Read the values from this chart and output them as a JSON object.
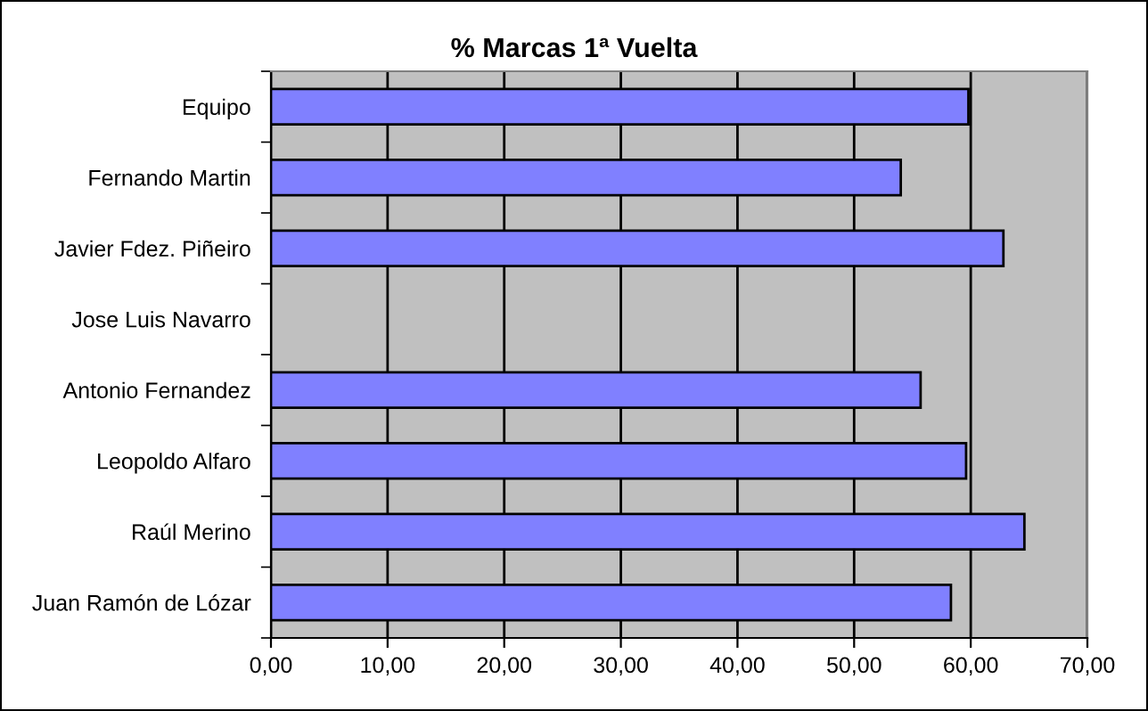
{
  "chart_data": {
    "type": "bar",
    "orientation": "horizontal",
    "title": "% Marcas 1ª Vuelta",
    "categories": [
      "Equipo",
      "Fernando Martin",
      "Javier Fdez. Piñeiro",
      "Jose Luis Navarro",
      "Antonio Fernandez",
      "Leopoldo Alfaro",
      "Raúl Merino",
      "Juan Ramón de Lózar"
    ],
    "values": [
      59.8,
      54.0,
      62.8,
      null,
      55.7,
      59.6,
      64.6,
      58.3
    ],
    "color": "#8080ff",
    "xlim": [
      0,
      70
    ],
    "xticks": [
      {
        "value": 0,
        "label": "0,00"
      },
      {
        "value": 10,
        "label": "10,00"
      },
      {
        "value": 20,
        "label": "20,00"
      },
      {
        "value": 30,
        "label": "30,00"
      },
      {
        "value": 40,
        "label": "40,00"
      },
      {
        "value": 50,
        "label": "50,00"
      },
      {
        "value": 60,
        "label": "60,00"
      },
      {
        "value": 70,
        "label": "70,00"
      }
    ],
    "grid": "x",
    "legend": false
  }
}
